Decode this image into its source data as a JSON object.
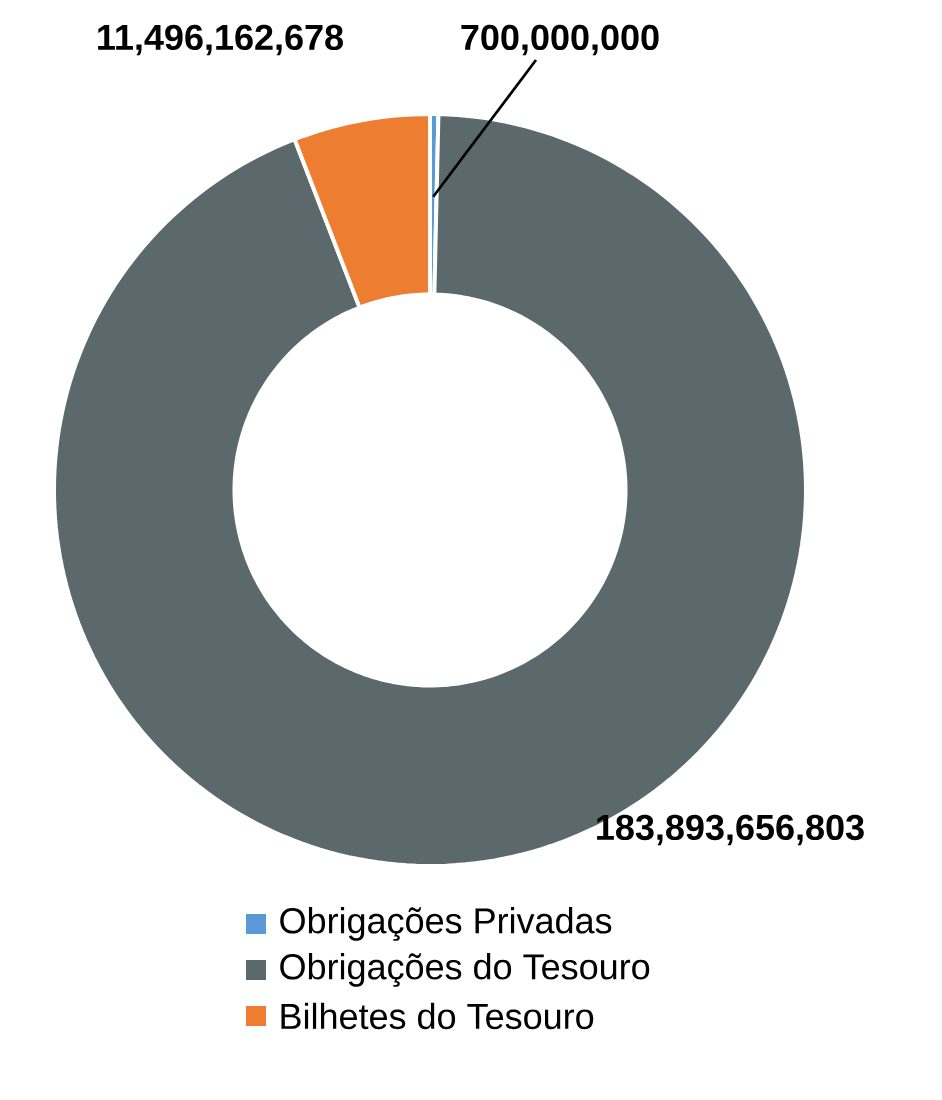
{
  "chart_data": {
    "type": "donut",
    "categories": [
      "Obrigações Privadas",
      "Obrigações do Tesouro",
      "Bilhetes do Tesouro"
    ],
    "values": [
      700000000,
      183893656803,
      11496162678
    ],
    "colors": [
      "#5b9bd5",
      "#5b686c",
      "#ed7d31"
    ],
    "value_labels": [
      "700,000,000",
      "183,893,656,803",
      "11,496,162,678"
    ],
    "legend": "bottom"
  }
}
